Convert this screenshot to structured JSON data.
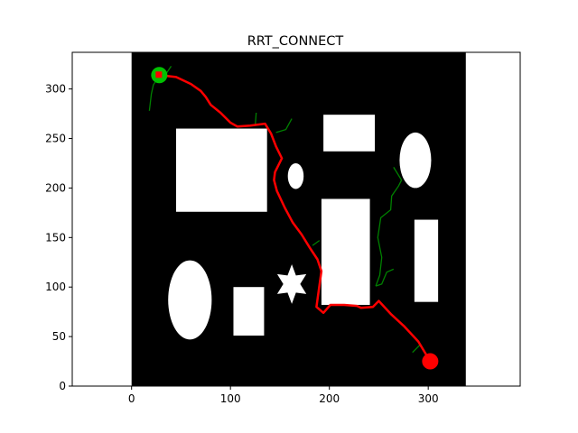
{
  "chart_data": {
    "type": "scatter",
    "title": "RRT_CONNECT",
    "xlabel": "",
    "ylabel": "",
    "xlim": [
      -60,
      393
    ],
    "ylim": [
      0,
      337
    ],
    "x_ticks": [
      0,
      100,
      200,
      300
    ],
    "y_ticks": [
      0,
      50,
      100,
      150,
      200,
      250,
      300
    ],
    "map_extent": {
      "x": [
        0,
        338
      ],
      "y": [
        0,
        337
      ]
    },
    "grid": false,
    "legend": "none",
    "colors": {
      "map_background": "#000000",
      "obstacle": "#ffffff",
      "path": "#ff0000",
      "tree": "#008000",
      "start": "#00c000",
      "goal": "#ff0000"
    },
    "start": {
      "x": 28,
      "y": 314
    },
    "goal": {
      "x": 302,
      "y": 25
    },
    "obstacles": [
      {
        "kind": "rect",
        "x0": 45,
        "x1": 137,
        "y0": 176,
        "y1": 260
      },
      {
        "kind": "rect",
        "x0": 194,
        "x1": 246,
        "y0": 237,
        "y1": 274
      },
      {
        "kind": "rect",
        "x0": 192,
        "x1": 241,
        "y0": 82,
        "y1": 189
      },
      {
        "kind": "rect",
        "x0": 286,
        "x1": 310,
        "y0": 85,
        "y1": 168
      },
      {
        "kind": "rect",
        "x0": 103,
        "x1": 134,
        "y0": 51,
        "y1": 100
      },
      {
        "kind": "ellipse",
        "cx": 166,
        "cy": 212,
        "rx": 8,
        "ry": 13
      },
      {
        "kind": "ellipse",
        "cx": 287,
        "cy": 228,
        "rx": 16,
        "ry": 28
      },
      {
        "kind": "ellipse",
        "cx": 59,
        "cy": 87,
        "rx": 22,
        "ry": 40
      },
      {
        "kind": "star",
        "cx": 162,
        "cy": 103,
        "r": 20
      }
    ],
    "path": [
      [
        28,
        314
      ],
      [
        45,
        312
      ],
      [
        60,
        305
      ],
      [
        70,
        298
      ],
      [
        75,
        292
      ],
      [
        80,
        284
      ],
      [
        90,
        276
      ],
      [
        100,
        266
      ],
      [
        107,
        262
      ],
      [
        120,
        263
      ],
      [
        135,
        265
      ],
      [
        141,
        255
      ],
      [
        146,
        242
      ],
      [
        152,
        230
      ],
      [
        145,
        216
      ],
      [
        144,
        208
      ],
      [
        147,
        197
      ],
      [
        155,
        180
      ],
      [
        163,
        165
      ],
      [
        172,
        153
      ],
      [
        180,
        140
      ],
      [
        188,
        128
      ],
      [
        192,
        116
      ],
      [
        187,
        80
      ],
      [
        194,
        74
      ],
      [
        201,
        82
      ],
      [
        215,
        82
      ],
      [
        228,
        81
      ],
      [
        232,
        79
      ],
      [
        244,
        80
      ],
      [
        250,
        86
      ],
      [
        262,
        73
      ],
      [
        276,
        60
      ],
      [
        290,
        45
      ],
      [
        302,
        25
      ]
    ],
    "tree_edges": [
      [
        [
          28,
          314
        ],
        [
          22,
          304
        ],
        [
          20,
          295
        ],
        [
          18,
          278
        ]
      ],
      [
        [
          34,
          314
        ],
        [
          40,
          323
        ]
      ],
      [
        [
          125,
          263
        ],
        [
          126,
          276
        ]
      ],
      [
        [
          146,
          256
        ],
        [
          156,
          259
        ],
        [
          162,
          270
        ]
      ],
      [
        [
          183,
          142
        ],
        [
          190,
          147
        ]
      ],
      [
        [
          247,
          101
        ],
        [
          251,
          112
        ],
        [
          253,
          130
        ],
        [
          249,
          150
        ],
        [
          252,
          170
        ],
        [
          262,
          178
        ],
        [
          263,
          192
        ],
        [
          270,
          202
        ],
        [
          273,
          208
        ],
        [
          265,
          221
        ]
      ],
      [
        [
          247,
          101
        ],
        [
          253,
          103
        ],
        [
          258,
          115
        ],
        [
          265,
          118
        ]
      ],
      [
        [
          284,
          34
        ],
        [
          292,
          42
        ]
      ]
    ]
  }
}
